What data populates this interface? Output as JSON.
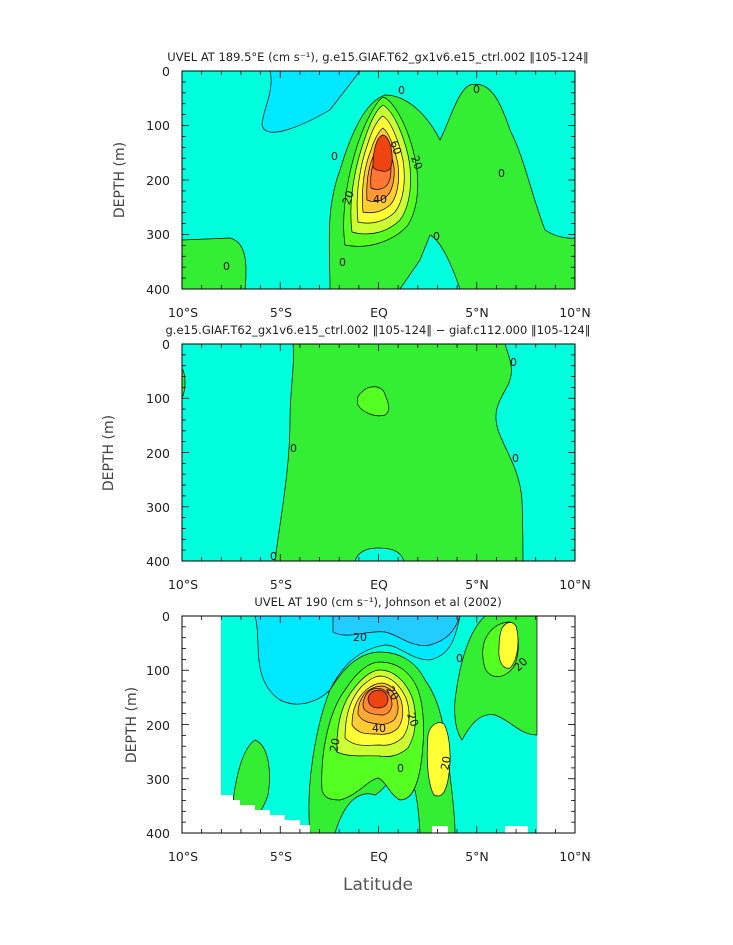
{
  "figure": {
    "xlabel": "Latitude"
  },
  "colors": {
    "cyan": "#00ffdd",
    "light_cyan": "#00e8ff",
    "green": "#33ee33",
    "green_light": "#55ff22",
    "yellow_green": "#ccff33",
    "yellow": "#ffff33",
    "orange_light": "#ffcc33",
    "orange": "#ff9933",
    "red": "#ee4411"
  },
  "chart_data": [
    {
      "type": "heatmap",
      "subtype": "filled-contour",
      "title": "UVEL AT 189.5°E (cm s⁻¹), g.e15.GIAF.T62_gx1v6.e15_ctrl.002 ‖105-124‖",
      "ylabel": "DEPTH (m)",
      "xlabel": "",
      "x_ticks": [
        "10°S",
        "5°S",
        "EQ",
        "5°N",
        "10°N"
      ],
      "y_ticks": [
        "0",
        "100",
        "200",
        "300",
        "400"
      ],
      "xlim": [
        -10,
        10
      ],
      "ylim": [
        400,
        0
      ],
      "contour_labels": [
        "0",
        "0",
        "0",
        "0",
        "0",
        "0",
        "0",
        "20",
        "20",
        "40",
        "60"
      ],
      "core": {
        "lat": 0,
        "depth": 145,
        "max_value": 60
      }
    },
    {
      "type": "heatmap",
      "subtype": "filled-contour",
      "title": "g.e15.GIAF.T62_gx1v6.e15_ctrl.002 ‖105-124‖ − giaf.c112.000 ‖105-124‖",
      "ylabel": "DEPTH (m)",
      "xlabel": "",
      "x_ticks": [
        "10°S",
        "5°S",
        "EQ",
        "5°N",
        "10°N"
      ],
      "y_ticks": [
        "0",
        "100",
        "200",
        "300",
        "400"
      ],
      "xlim": [
        -10,
        10
      ],
      "ylim": [
        400,
        0
      ],
      "contour_labels": [
        "0",
        "0",
        "0",
        "0"
      ]
    },
    {
      "type": "heatmap",
      "subtype": "filled-contour",
      "title": "UVEL AT 190 (cm s⁻¹), Johnson et al (2002)",
      "ylabel": "DEPTH (m)",
      "xlabel": "Latitude",
      "x_ticks": [
        "10°S",
        "5°S",
        "EQ",
        "5°N",
        "10°N"
      ],
      "y_ticks": [
        "0",
        "100",
        "200",
        "300",
        "400"
      ],
      "xlim": [
        -10,
        10
      ],
      "ylim": [
        400,
        0
      ],
      "contour_labels": [
        "20",
        "0",
        "20",
        "40",
        "20",
        "20",
        "20",
        "20",
        "0"
      ],
      "core": {
        "lat": 0,
        "depth": 150,
        "max_value": 60
      }
    }
  ]
}
